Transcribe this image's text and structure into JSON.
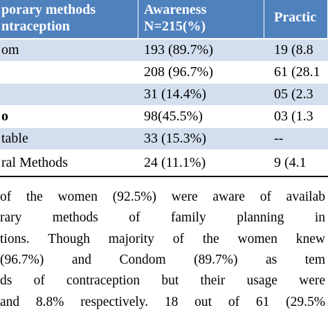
{
  "table": {
    "header": [
      [
        "porary methods",
        "ntraception"
      ],
      [
        "Awareness",
        "N=215(%)"
      ],
      [
        "Practic"
      ]
    ],
    "rows": [
      [
        "om",
        "193 (89.7%)",
        "19 (8.8"
      ],
      [
        null,
        "208 (96.7%)",
        "61 (28.1"
      ],
      [
        null,
        "31 (14.4%)",
        "05 (2.3"
      ],
      [
        "o",
        "98(45.5%)",
        "03 (1.3"
      ],
      [
        "table",
        "33 (15.3%)",
        "--"
      ],
      [
        "ral Methods",
        "24 (11.1%)",
        "9 (4.1"
      ]
    ]
  },
  "paragraph": {
    "lines": [
      "of the women (92.5%) were aware of availab",
      "rary methods of family planning in",
      "tions. Though majority of the women knew",
      "(96.7%) and Condom (89.7%) as tem",
      "ds of contraception but their usage were",
      "and 8.8% respectively. 18 out of 61 (29.5%"
    ]
  }
}
